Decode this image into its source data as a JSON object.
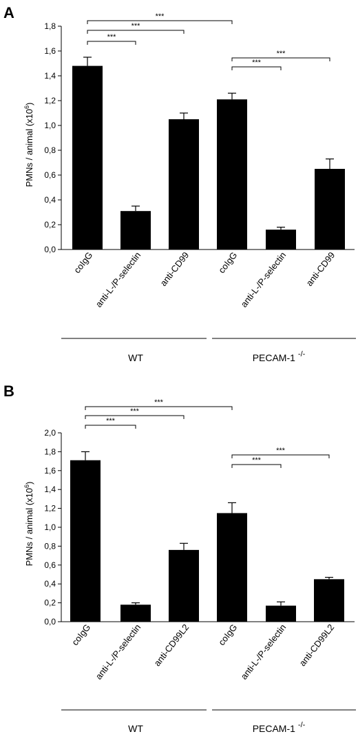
{
  "panels": [
    {
      "letter": "A",
      "ylabel_main": "PMNs / animal  (x10",
      "ylabel_sup": "6",
      "ylabel_end": ")",
      "groups": [
        {
          "label": "WT",
          "sup": ""
        },
        {
          "label": "PECAM-1",
          "sup": "-/-"
        }
      ],
      "sig_label": "***"
    },
    {
      "letter": "B",
      "ylabel_main": "PMNs / animal  (x10",
      "ylabel_sup": "6",
      "ylabel_end": ")",
      "groups": [
        {
          "label": "WT",
          "sup": ""
        },
        {
          "label": "PECAM-1",
          "sup": "-/-"
        }
      ],
      "sig_label": "***"
    }
  ],
  "chart_data": [
    {
      "type": "bar",
      "title": "A",
      "categories": [
        "coIgG",
        "anti-L-/P-selectin",
        "anti-CD99",
        "coIgG",
        "anti-L-/P-selectin",
        "anti-CD99"
      ],
      "values": [
        1.48,
        0.31,
        1.05,
        1.21,
        0.16,
        0.65
      ],
      "errors": [
        0.07,
        0.04,
        0.05,
        0.05,
        0.02,
        0.08
      ],
      "ylim": [
        0,
        1.8
      ],
      "yticks": [
        "0,0",
        "0,2",
        "0,4",
        "0,6",
        "0,8",
        "1,0",
        "1,2",
        "1,4",
        "1,6",
        "1,8"
      ],
      "ylabel": "PMNs / animal (x10^6)",
      "groups": [
        "WT",
        "PECAM-1 -/-"
      ],
      "significance": [
        {
          "from": 0,
          "to": 1,
          "label": "***"
        },
        {
          "from": 0,
          "to": 2,
          "label": "***"
        },
        {
          "from": 0,
          "to": 3,
          "label": "***"
        },
        {
          "from": 3,
          "to": 4,
          "label": "***"
        },
        {
          "from": 3,
          "to": 5,
          "label": "***"
        }
      ]
    },
    {
      "type": "bar",
      "title": "B",
      "categories": [
        "coIgG",
        "anti-L-/P-selectin",
        "anti-CD99L2",
        "coIgG",
        "anti-L-/P-selectin",
        "anti-CD99L2"
      ],
      "values": [
        1.71,
        0.18,
        0.76,
        1.15,
        0.17,
        0.45
      ],
      "errors": [
        0.09,
        0.02,
        0.07,
        0.11,
        0.04,
        0.02
      ],
      "ylim": [
        0,
        2.0
      ],
      "yticks": [
        "0,0",
        "0,2",
        "0,4",
        "0,6",
        "0,8",
        "1,0",
        "1,2",
        "1,4",
        "1,6",
        "1,8",
        "2,0"
      ],
      "ylabel": "PMNs / animal (x10^6)",
      "groups": [
        "WT",
        "PECAM-1 -/-"
      ],
      "significance": [
        {
          "from": 0,
          "to": 1,
          "label": "***"
        },
        {
          "from": 0,
          "to": 2,
          "label": "***"
        },
        {
          "from": 0,
          "to": 3,
          "label": "***"
        },
        {
          "from": 3,
          "to": 4,
          "label": "***"
        },
        {
          "from": 3,
          "to": 5,
          "label": "***"
        }
      ]
    }
  ]
}
